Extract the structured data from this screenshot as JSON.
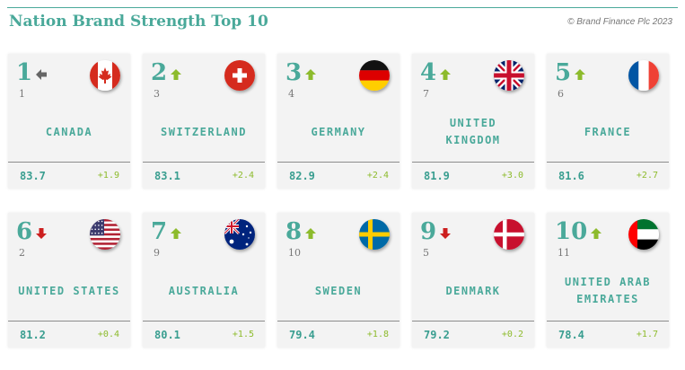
{
  "header": {
    "title": "Nation Brand Strength Top 10",
    "copyright": "© Brand Finance Plc 2023"
  },
  "colors": {
    "accent": "#4aa99a",
    "up": "#8dbb2c",
    "down": "#cc1f1f",
    "same": "#666666",
    "card_bg": "#f3f3f3"
  },
  "cards": [
    {
      "rank": "1",
      "prev": "1",
      "trend": "same",
      "name": "CANADA",
      "score": "83.7",
      "change": "+1.9",
      "flag": "canada-flag-icon"
    },
    {
      "rank": "2",
      "prev": "3",
      "trend": "up",
      "name": "SWITZERLAND",
      "score": "83.1",
      "change": "+2.4",
      "flag": "switzerland-flag-icon"
    },
    {
      "rank": "3",
      "prev": "4",
      "trend": "up",
      "name": "GERMANY",
      "score": "82.9",
      "change": "+2.4",
      "flag": "germany-flag-icon"
    },
    {
      "rank": "4",
      "prev": "7",
      "trend": "up",
      "name": "UNITED\nKINGDOM",
      "score": "81.9",
      "change": "+3.0",
      "flag": "uk-flag-icon"
    },
    {
      "rank": "5",
      "prev": "6",
      "trend": "up",
      "name": "FRANCE",
      "score": "81.6",
      "change": "+2.7",
      "flag": "france-flag-icon"
    },
    {
      "rank": "6",
      "prev": "2",
      "trend": "down",
      "name": "UNITED STATES",
      "score": "81.2",
      "change": "+0.4",
      "flag": "usa-flag-icon"
    },
    {
      "rank": "7",
      "prev": "9",
      "trend": "up",
      "name": "AUSTRALIA",
      "score": "80.1",
      "change": "+1.5",
      "flag": "australia-flag-icon"
    },
    {
      "rank": "8",
      "prev": "10",
      "trend": "up",
      "name": "SWEDEN",
      "score": "79.4",
      "change": "+1.8",
      "flag": "sweden-flag-icon"
    },
    {
      "rank": "9",
      "prev": "5",
      "trend": "down",
      "name": "DENMARK",
      "score": "79.2",
      "change": "+0.2",
      "flag": "denmark-flag-icon"
    },
    {
      "rank": "10",
      "prev": "11",
      "trend": "up",
      "name": "UNITED ARAB\nEMIRATES",
      "score": "78.4",
      "change": "+1.7",
      "flag": "uae-flag-icon"
    }
  ]
}
